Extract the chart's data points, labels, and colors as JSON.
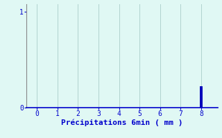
{
  "background_color": "#e0f8f4",
  "bar_x": [
    8
  ],
  "bar_heights": [
    0.22
  ],
  "bar_color": "#0000bb",
  "bar_width": 0.12,
  "xlim": [
    -0.5,
    8.8
  ],
  "ylim": [
    0,
    1.08
  ],
  "xticks": [
    0,
    1,
    2,
    3,
    4,
    5,
    6,
    7,
    8
  ],
  "yticks": [
    0,
    1
  ],
  "xlabel": "Précipitations 6min ( mm )",
  "xlabel_color": "#0000cc",
  "xlabel_fontsize": 8,
  "tick_color": "#0000cc",
  "tick_fontsize": 7,
  "grid_color": "#a8ccc8",
  "grid_linewidth": 0.6,
  "spine_color": "#0000cc",
  "yspine_color": "#888888",
  "spine_linewidth": 1.2
}
